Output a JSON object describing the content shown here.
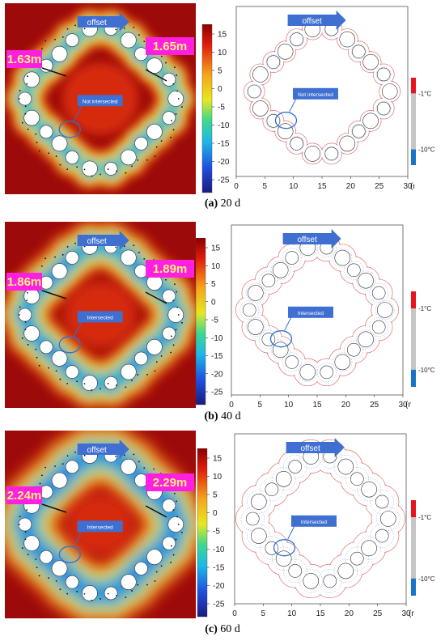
{
  "panels": [
    {
      "caption_letter": "(a)",
      "caption_text": "20 d",
      "offset_label": "offset",
      "left_width": "1.63m",
      "right_width": "1.65m",
      "heat_status": "Not intersected",
      "plan_status": "Not intersected"
    },
    {
      "caption_letter": "(b)",
      "caption_text": "40 d",
      "offset_label": "offset",
      "left_width": "1.86m",
      "right_width": "1.89m",
      "heat_status": "Intersected",
      "plan_status": "Intersected"
    },
    {
      "caption_letter": "(c)",
      "caption_text": "60 d",
      "offset_label": "offset",
      "left_width": "2.24m",
      "right_width": "2.29m",
      "heat_status": "Intersected",
      "plan_status": "Intersected"
    }
  ],
  "colorbar_ticks": [
    "15",
    "10",
    "5",
    "0",
    "-5",
    "-10",
    "-15",
    "-20",
    "-25"
  ],
  "plan_axis_ticks": [
    "0",
    "5",
    "10",
    "15",
    "20",
    "25",
    "30"
  ],
  "plan_axis_unit": "(m)",
  "legend": {
    "top_label": "-1°C",
    "bottom_label": "-10°C",
    "colors": {
      "top": "#e8141c",
      "middle": "#c6c6c6",
      "bottom": "#1a73c8"
    }
  },
  "colors": {
    "heat_background": "#9c0a0a",
    "frozen_core": "#1533d8",
    "offset_arrow": "#3f6fd1",
    "width_label_bg": "#ff1fe0",
    "width_label_text": "#fff27a",
    "plan_outline": "#e07070",
    "plan_ellipse": "#2f6fd2"
  }
}
